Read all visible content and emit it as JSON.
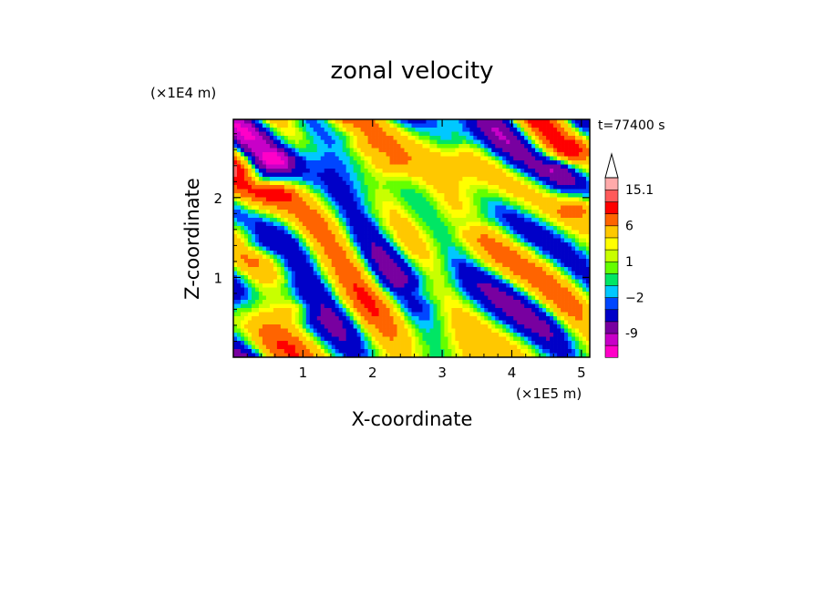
{
  "chart_data": {
    "type": "heatmap",
    "title": "zonal velocity",
    "xlabel": "X-coordinate",
    "ylabel": "Z-coordinate",
    "x_unit": "(×1E5 m)",
    "y_unit": "(×1E4 m)",
    "time_label": "t=77400 s",
    "xlim": [
      0,
      5.12
    ],
    "ylim": [
      0,
      2.98
    ],
    "x_ticks": [
      1,
      2,
      3,
      4,
      5
    ],
    "y_ticks": [
      1,
      2
    ],
    "x_tick_labels": [
      "1",
      "2",
      "3",
      "4",
      "5"
    ],
    "y_tick_labels": [
      "1",
      "2"
    ],
    "colorbar": {
      "levels": [
        -15,
        -12,
        -9,
        -6,
        -3,
        -2,
        -1,
        0,
        1,
        2,
        3,
        6,
        9,
        12,
        15.1
      ],
      "colors": [
        "#ff00c8",
        "#c800c8",
        "#7800a0",
        "#0000c8",
        "#0046ff",
        "#00c8ff",
        "#00e664",
        "#64ff00",
        "#c8ff00",
        "#ffff00",
        "#ffc800",
        "#ff6400",
        "#ff0000",
        "#ff5a5a",
        "#ffaaaa"
      ],
      "labels": [
        {
          "value": -9,
          "text": "-9"
        },
        {
          "value": -2,
          "text": "−2"
        },
        {
          "value": 1,
          "text": "1"
        },
        {
          "value": 6,
          "text": "6"
        },
        {
          "value": 15.1,
          "text": "15.1"
        }
      ],
      "extend": "max"
    },
    "field_bands": [
      {
        "z": 0.15,
        "mean": 1.5
      },
      {
        "z": 0.5,
        "mean": 0.5
      },
      {
        "z": 0.9,
        "mean": -0.5
      },
      {
        "z": 1.3,
        "mean": 0.8
      },
      {
        "z": 1.7,
        "mean": 1.0
      },
      {
        "z": 2.2,
        "mean": 1.5
      },
      {
        "z": 2.6,
        "mean": 1.2
      },
      {
        "z": 2.9,
        "mean": 0.0
      }
    ],
    "features": [
      {
        "x": 0.6,
        "z": 2.45,
        "value": -7
      },
      {
        "x": 0.35,
        "z": 2.25,
        "value": -6
      },
      {
        "x": 4.65,
        "z": 2.35,
        "value": -6
      },
      {
        "x": 4.85,
        "z": 2.2,
        "value": -5
      },
      {
        "x": 0.3,
        "z": 1.4,
        "value": -4
      },
      {
        "x": 3.4,
        "z": 1.7,
        "value": -3
      },
      {
        "x": 0.7,
        "z": 2.05,
        "value": 5
      },
      {
        "x": 4.9,
        "z": 2.6,
        "value": 5
      },
      {
        "x": 4.95,
        "z": 1.85,
        "value": 6
      },
      {
        "x": 0.9,
        "z": 0.6,
        "value": 4
      },
      {
        "x": 2.6,
        "z": 0.8,
        "value": 3
      },
      {
        "x": 2.3,
        "z": 2.4,
        "value": 2.5
      },
      {
        "x": 3.1,
        "z": 2.7,
        "value": -2
      },
      {
        "x": 1.7,
        "z": 2.8,
        "value": -2.5
      }
    ]
  }
}
